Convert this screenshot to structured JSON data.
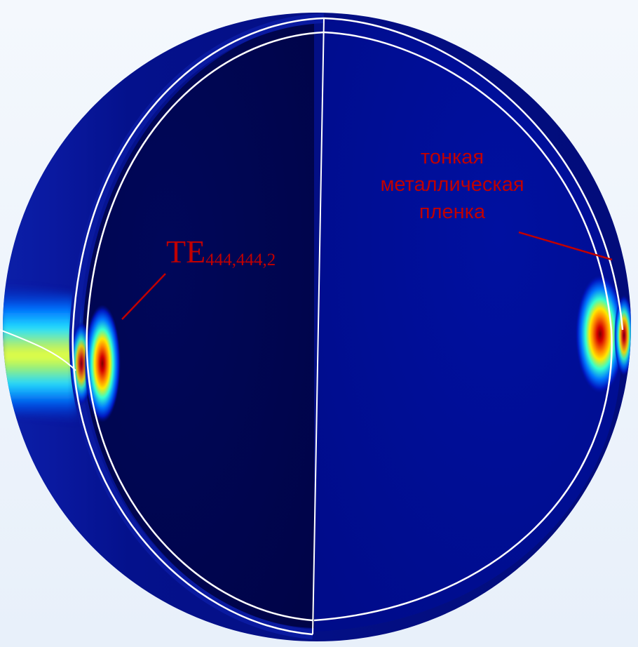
{
  "annotations": {
    "metal_film": {
      "lines": [
        "тонкая",
        "металлическая",
        "пленка"
      ]
    },
    "mode": {
      "main": "TE",
      "subscript": "444,444,2"
    }
  },
  "colors": {
    "background": "#eef4fb",
    "sphere_dark": "#00064a",
    "sphere_medium": "#000c8c",
    "mode_peak": "#8b0000",
    "mode_mid": "#ffd400",
    "mode_edge": "#00c8ff",
    "annotation": "#c00000",
    "edge_lines": "#ffffff"
  },
  "colormap": "rainbow"
}
